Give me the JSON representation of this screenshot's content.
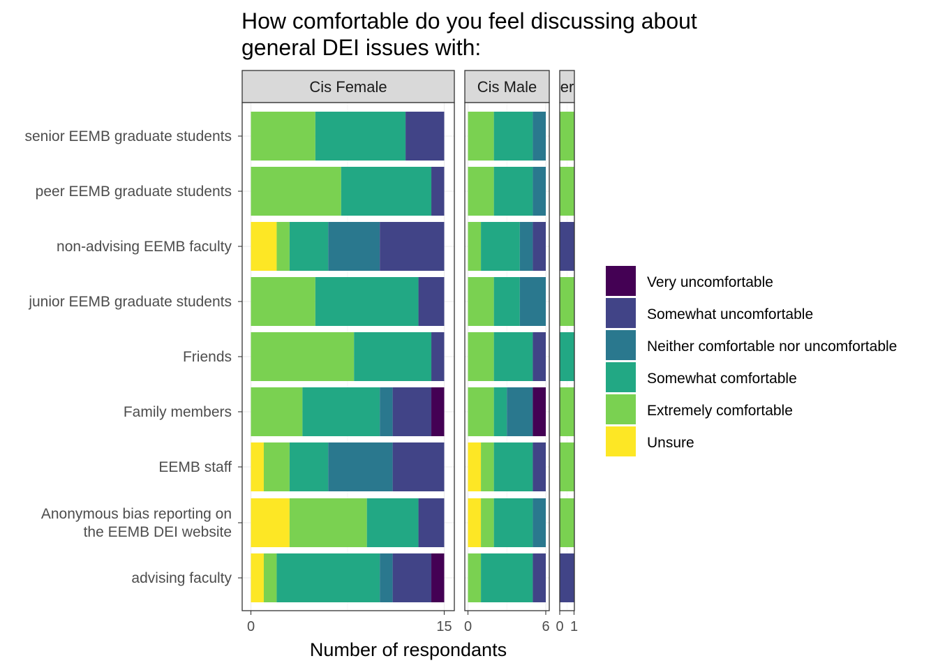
{
  "chart_data": {
    "type": "bar",
    "orientation": "horizontal",
    "stacked": true,
    "title": "How comfortable do you feel discussing about\ngeneral DEI issues with:",
    "xlabel": "Number of respondants",
    "ylabel": "",
    "grid": true,
    "legend_position": "right",
    "categories": [
      "senior EEMB graduate students",
      "peer EEMB graduate students",
      "non-advising EEMB faculty",
      "junior EEMB graduate students",
      "Friends",
      "Family members",
      "EEMB staff",
      "Anonymous bias reporting on\nthe EEMB DEI website",
      "advising faculty"
    ],
    "levels": [
      {
        "name": "Very uncomfortable",
        "color": "#440154"
      },
      {
        "name": "Somewhat uncomfortable",
        "color": "#414487"
      },
      {
        "name": "Neither comfortable nor uncomfortable",
        "color": "#2A788E"
      },
      {
        "name": "Somewhat comfortable",
        "color": "#22A884"
      },
      {
        "name": "Extremely comfortable",
        "color": "#7AD151"
      },
      {
        "name": "Unsure",
        "color": "#FDE725"
      }
    ],
    "stack_order_from_zero": [
      "Unsure",
      "Extremely comfortable",
      "Somewhat comfortable",
      "Neither comfortable nor uncomfortable",
      "Somewhat uncomfortable",
      "Very uncomfortable"
    ],
    "panels": [
      {
        "strip_label": "Cis Female",
        "xlim": [
          0,
          15
        ],
        "xticks": [
          "0",
          "15"
        ],
        "values": {
          "senior EEMB graduate students": {
            "Unsure": 0,
            "Extremely comfortable": 5,
            "Somewhat comfortable": 7,
            "Neither comfortable nor uncomfortable": 0,
            "Somewhat uncomfortable": 3,
            "Very uncomfortable": 0
          },
          "peer EEMB graduate students": {
            "Unsure": 0,
            "Extremely comfortable": 7,
            "Somewhat comfortable": 7,
            "Neither comfortable nor uncomfortable": 0,
            "Somewhat uncomfortable": 1,
            "Very uncomfortable": 0
          },
          "non-advising EEMB faculty": {
            "Unsure": 2,
            "Extremely comfortable": 1,
            "Somewhat comfortable": 3,
            "Neither comfortable nor uncomfortable": 4,
            "Somewhat uncomfortable": 5,
            "Very uncomfortable": 0
          },
          "junior EEMB graduate students": {
            "Unsure": 0,
            "Extremely comfortable": 5,
            "Somewhat comfortable": 8,
            "Neither comfortable nor uncomfortable": 0,
            "Somewhat uncomfortable": 2,
            "Very uncomfortable": 0
          },
          "Friends": {
            "Unsure": 0,
            "Extremely comfortable": 8,
            "Somewhat comfortable": 6,
            "Neither comfortable nor uncomfortable": 0,
            "Somewhat uncomfortable": 1,
            "Very uncomfortable": 0
          },
          "Family members": {
            "Unsure": 0,
            "Extremely comfortable": 4,
            "Somewhat comfortable": 6,
            "Neither comfortable nor uncomfortable": 1,
            "Somewhat uncomfortable": 3,
            "Very uncomfortable": 1
          },
          "EEMB staff": {
            "Unsure": 1,
            "Extremely comfortable": 2,
            "Somewhat comfortable": 3,
            "Neither comfortable nor uncomfortable": 5,
            "Somewhat uncomfortable": 4,
            "Very uncomfortable": 0
          },
          "Anonymous bias reporting on\nthe EEMB DEI website": {
            "Unsure": 3,
            "Extremely comfortable": 6,
            "Somewhat comfortable": 4,
            "Neither comfortable nor uncomfortable": 0,
            "Somewhat uncomfortable": 2,
            "Very uncomfortable": 0
          },
          "advising faculty": {
            "Unsure": 1,
            "Extremely comfortable": 1,
            "Somewhat comfortable": 8,
            "Neither comfortable nor uncomfortable": 1,
            "Somewhat uncomfortable": 3,
            "Very uncomfortable": 1
          }
        }
      },
      {
        "strip_label": "Cis Male",
        "xlim": [
          0,
          6
        ],
        "xticks": [
          "0",
          "6"
        ],
        "values": {
          "senior EEMB graduate students": {
            "Unsure": 0,
            "Extremely comfortable": 2,
            "Somewhat comfortable": 3,
            "Neither comfortable nor uncomfortable": 1,
            "Somewhat uncomfortable": 0,
            "Very uncomfortable": 0
          },
          "peer EEMB graduate students": {
            "Unsure": 0,
            "Extremely comfortable": 2,
            "Somewhat comfortable": 3,
            "Neither comfortable nor uncomfortable": 1,
            "Somewhat uncomfortable": 0,
            "Very uncomfortable": 0
          },
          "non-advising EEMB faculty": {
            "Unsure": 0,
            "Extremely comfortable": 1,
            "Somewhat comfortable": 3,
            "Neither comfortable nor uncomfortable": 1,
            "Somewhat uncomfortable": 1,
            "Very uncomfortable": 0
          },
          "junior EEMB graduate students": {
            "Unsure": 0,
            "Extremely comfortable": 2,
            "Somewhat comfortable": 2,
            "Neither comfortable nor uncomfortable": 2,
            "Somewhat uncomfortable": 0,
            "Very uncomfortable": 0
          },
          "Friends": {
            "Unsure": 0,
            "Extremely comfortable": 2,
            "Somewhat comfortable": 3,
            "Neither comfortable nor uncomfortable": 0,
            "Somewhat uncomfortable": 1,
            "Very uncomfortable": 0
          },
          "Family members": {
            "Unsure": 0,
            "Extremely comfortable": 2,
            "Somewhat comfortable": 1,
            "Neither comfortable nor uncomfortable": 2,
            "Somewhat uncomfortable": 0,
            "Very uncomfortable": 1
          },
          "EEMB staff": {
            "Unsure": 1,
            "Extremely comfortable": 1,
            "Somewhat comfortable": 3,
            "Neither comfortable nor uncomfortable": 0,
            "Somewhat uncomfortable": 1,
            "Very uncomfortable": 0
          },
          "Anonymous bias reporting on\nthe EEMB DEI website": {
            "Unsure": 1,
            "Extremely comfortable": 1,
            "Somewhat comfortable": 3,
            "Neither comfortable nor uncomfortable": 1,
            "Somewhat uncomfortable": 0,
            "Very uncomfortable": 0
          },
          "advising faculty": {
            "Unsure": 0,
            "Extremely comfortable": 1,
            "Somewhat comfortable": 4,
            "Neither comfortable nor uncomfortable": 0,
            "Somewhat uncomfortable": 1,
            "Very uncomfortable": 0
          }
        }
      },
      {
        "strip_label": "er",
        "xlim": [
          0,
          1
        ],
        "xticks": [
          "0",
          "1"
        ],
        "values": {
          "senior EEMB graduate students": {
            "Unsure": 0,
            "Extremely comfortable": 1,
            "Somewhat comfortable": 0,
            "Neither comfortable nor uncomfortable": 0,
            "Somewhat uncomfortable": 0,
            "Very uncomfortable": 0
          },
          "peer EEMB graduate students": {
            "Unsure": 0,
            "Extremely comfortable": 1,
            "Somewhat comfortable": 0,
            "Neither comfortable nor uncomfortable": 0,
            "Somewhat uncomfortable": 0,
            "Very uncomfortable": 0
          },
          "non-advising EEMB faculty": {
            "Unsure": 0,
            "Extremely comfortable": 0,
            "Somewhat comfortable": 0,
            "Neither comfortable nor uncomfortable": 0,
            "Somewhat uncomfortable": 1,
            "Very uncomfortable": 0
          },
          "junior EEMB graduate students": {
            "Unsure": 0,
            "Extremely comfortable": 1,
            "Somewhat comfortable": 0,
            "Neither comfortable nor uncomfortable": 0,
            "Somewhat uncomfortable": 0,
            "Very uncomfortable": 0
          },
          "Friends": {
            "Unsure": 0,
            "Extremely comfortable": 0,
            "Somewhat comfortable": 1,
            "Neither comfortable nor uncomfortable": 0,
            "Somewhat uncomfortable": 0,
            "Very uncomfortable": 0
          },
          "Family members": {
            "Unsure": 0,
            "Extremely comfortable": 1,
            "Somewhat comfortable": 0,
            "Neither comfortable nor uncomfortable": 0,
            "Somewhat uncomfortable": 0,
            "Very uncomfortable": 0
          },
          "EEMB staff": {
            "Unsure": 0,
            "Extremely comfortable": 1,
            "Somewhat comfortable": 0,
            "Neither comfortable nor uncomfortable": 0,
            "Somewhat uncomfortable": 0,
            "Very uncomfortable": 0
          },
          "Anonymous bias reporting on\nthe EEMB DEI website": {
            "Unsure": 0,
            "Extremely comfortable": 1,
            "Somewhat comfortable": 0,
            "Neither comfortable nor uncomfortable": 0,
            "Somewhat uncomfortable": 0,
            "Very uncomfortable": 0
          },
          "advising faculty": {
            "Unsure": 0,
            "Extremely comfortable": 0,
            "Somewhat comfortable": 0,
            "Neither comfortable nor uncomfortable": 0,
            "Somewhat uncomfortable": 1,
            "Very uncomfortable": 0
          }
        }
      }
    ]
  }
}
